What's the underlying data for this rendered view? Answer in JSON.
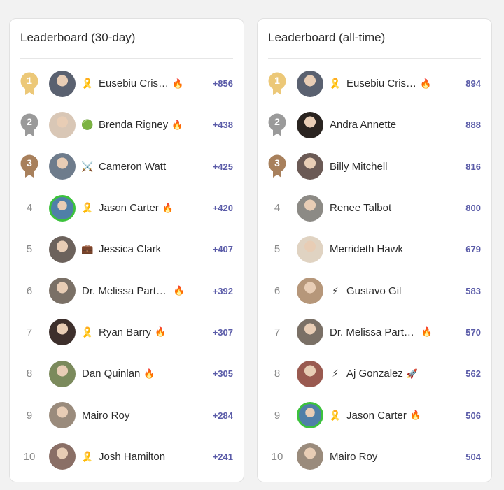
{
  "colors": {
    "gold": "#ecc878",
    "silver": "#9a9a9a",
    "bronze": "#a8805c",
    "score": "#5a5ba8",
    "ring": "#3cc23c"
  },
  "monthly": {
    "title": "Leaderboard (30-day)",
    "rows": [
      {
        "rank": "1",
        "name": "Eusebiu Cris…",
        "badge": "🎗️",
        "fire": "🔥",
        "score": "+856",
        "avatar": "#5a6170"
      },
      {
        "rank": "2",
        "name": "Brenda Rigney",
        "badge": "🟢",
        "fire": "🔥",
        "score": "+438",
        "avatar": "#d9c7b6"
      },
      {
        "rank": "3",
        "name": "Cameron Watt",
        "badge": "⚔️",
        "fire": "",
        "score": "+425",
        "avatar": "#6e7c8c"
      },
      {
        "rank": "4",
        "name": "Jason Carter",
        "badge": "🎗️",
        "fire": "🔥",
        "score": "+420",
        "avatar": "#4f7fa8"
      },
      {
        "rank": "5",
        "name": "Jessica Clark",
        "badge": "💼",
        "fire": "",
        "score": "+407",
        "avatar": "#6c625c"
      },
      {
        "rank": "6",
        "name": "Dr. Melissa Part…",
        "badge": "",
        "fire": "🔥",
        "score": "+392",
        "avatar": "#7a7066"
      },
      {
        "rank": "7",
        "name": "Ryan Barry",
        "badge": "🎗️",
        "fire": "🔥",
        "score": "+307",
        "avatar": "#3d2f2c"
      },
      {
        "rank": "8",
        "name": "Dan Quinlan",
        "badge": "",
        "fire": "🔥",
        "score": "+305",
        "avatar": "#7b8a5c"
      },
      {
        "rank": "9",
        "name": "Mairo Roy",
        "badge": "",
        "fire": "",
        "score": "+284",
        "avatar": "#9a8b7c"
      },
      {
        "rank": "10",
        "name": "Josh Hamilton",
        "badge": "🎗️",
        "fire": "",
        "score": "+241",
        "avatar": "#8a6f66"
      }
    ]
  },
  "alltime": {
    "title": "Leaderboard (all-time)",
    "rows": [
      {
        "rank": "1",
        "name": "Eusebiu Cris…",
        "badge": "🎗️",
        "fire": "🔥",
        "score": "894",
        "avatar": "#5a6170"
      },
      {
        "rank": "2",
        "name": "Andra Annette",
        "badge": "",
        "fire": "",
        "score": "888",
        "avatar": "#2a2420"
      },
      {
        "rank": "3",
        "name": "Billy Mitchell",
        "badge": "",
        "fire": "",
        "score": "816",
        "avatar": "#6b5a55"
      },
      {
        "rank": "4",
        "name": "Renee Talbot",
        "badge": "",
        "fire": "",
        "score": "800",
        "avatar": "#8c8a85"
      },
      {
        "rank": "5",
        "name": "Merrideth Hawk",
        "badge": "",
        "fire": "",
        "score": "679",
        "avatar": "#e0d3c2"
      },
      {
        "rank": "6",
        "name": "Gustavo Gil",
        "badge": "⚡",
        "fire": "",
        "score": "583",
        "avatar": "#b6977a"
      },
      {
        "rank": "7",
        "name": "Dr. Melissa Part…",
        "badge": "",
        "fire": "🔥",
        "score": "570",
        "avatar": "#7a7066"
      },
      {
        "rank": "8",
        "name": "Aj Gonzalez",
        "badge": "⚡",
        "fire": "🚀",
        "score": "562",
        "avatar": "#9a5a50"
      },
      {
        "rank": "9",
        "name": "Jason Carter",
        "badge": "🎗️",
        "fire": "🔥",
        "score": "506",
        "avatar": "#4f7fa8"
      },
      {
        "rank": "10",
        "name": "Mairo Roy",
        "badge": "",
        "fire": "",
        "score": "504",
        "avatar": "#9a8b7c"
      }
    ]
  }
}
